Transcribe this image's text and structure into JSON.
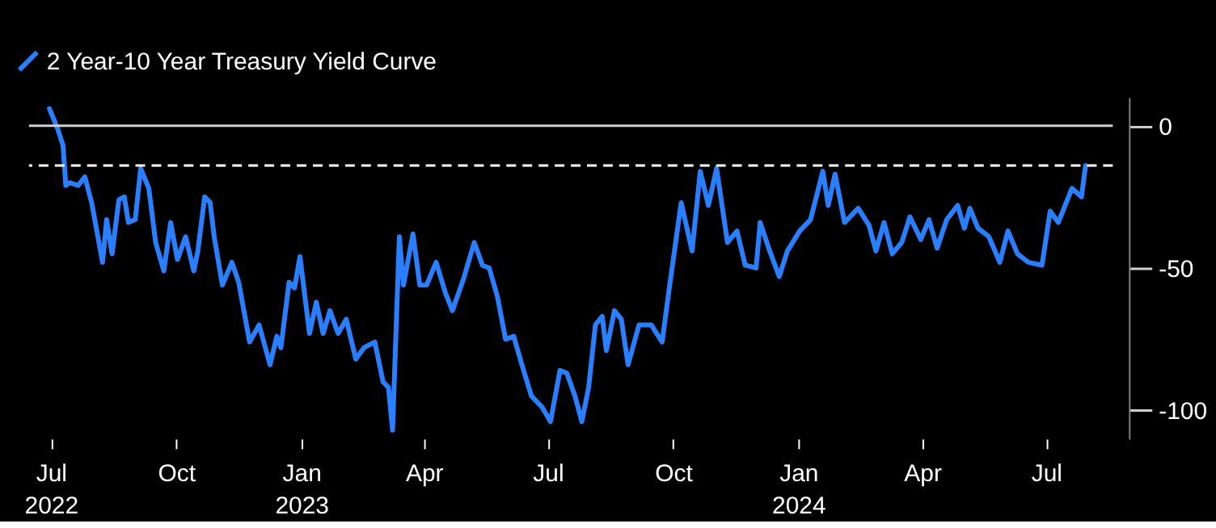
{
  "chart_data": {
    "type": "line",
    "x": [
      "2022-06-30",
      "2022-07-06",
      "2022-07-10",
      "2022-07-12",
      "2022-07-15",
      "2022-07-21",
      "2022-07-26",
      "2022-07-31",
      "2022-08-08",
      "2022-08-11",
      "2022-08-15",
      "2022-08-20",
      "2022-08-24",
      "2022-08-27",
      "2022-09-01",
      "2022-09-05",
      "2022-09-11",
      "2022-09-16",
      "2022-09-22",
      "2022-09-27",
      "2022-10-02",
      "2022-10-08",
      "2022-10-14",
      "2022-10-17",
      "2022-10-22",
      "2022-10-26",
      "2022-10-29",
      "2022-11-04",
      "2022-11-11",
      "2022-11-16",
      "2022-11-24",
      "2022-12-01",
      "2022-12-09",
      "2022-12-14",
      "2022-12-17",
      "2022-12-23",
      "2022-12-27",
      "2022-12-31",
      "2023-01-07",
      "2023-01-12",
      "2023-01-17",
      "2023-01-22",
      "2023-01-28",
      "2023-02-03",
      "2023-02-10",
      "2023-02-16",
      "2023-02-24",
      "2023-03-02",
      "2023-03-06",
      "2023-03-09",
      "2023-03-14",
      "2023-03-17",
      "2023-03-24",
      "2023-03-29",
      "2023-04-03",
      "2023-04-10",
      "2023-04-17",
      "2023-04-22",
      "2023-04-30",
      "2023-05-08",
      "2023-05-14",
      "2023-05-19",
      "2023-05-25",
      "2023-05-31",
      "2023-06-06",
      "2023-06-12",
      "2023-06-19",
      "2023-06-27",
      "2023-07-03",
      "2023-07-10",
      "2023-07-15",
      "2023-07-21",
      "2023-07-26",
      "2023-07-31",
      "2023-08-05",
      "2023-08-10",
      "2023-08-13",
      "2023-08-19",
      "2023-08-24",
      "2023-08-29",
      "2023-09-06",
      "2023-09-15",
      "2023-09-23",
      "2023-09-28",
      "2023-10-07",
      "2023-10-15",
      "2023-10-21",
      "2023-10-27",
      "2023-11-02",
      "2023-11-10",
      "2023-11-17",
      "2023-11-23",
      "2023-12-01",
      "2023-12-04",
      "2023-12-11",
      "2023-12-18",
      "2023-12-24",
      "2024-01-02",
      "2024-01-10",
      "2024-01-19",
      "2024-01-23",
      "2024-01-28",
      "2024-02-04",
      "2024-02-14",
      "2024-02-22",
      "2024-02-27",
      "2024-03-04",
      "2024-03-10",
      "2024-03-17",
      "2024-03-23",
      "2024-03-31",
      "2024-04-06",
      "2024-04-12",
      "2024-04-19",
      "2024-04-27",
      "2024-05-02",
      "2024-05-06",
      "2024-05-12",
      "2024-05-20",
      "2024-05-28",
      "2024-06-03",
      "2024-06-10",
      "2024-06-18",
      "2024-06-28",
      "2024-07-04",
      "2024-07-10",
      "2024-07-15",
      "2024-07-20",
      "2024-07-27",
      "2024-07-30"
    ],
    "series": [
      {
        "name": "2 Year-10 Year Treasury Yield Curve",
        "color": "#2a7fff",
        "values": [
          6,
          -1,
          -7,
          -21,
          -20,
          -21,
          -18,
          -27,
          -48,
          -33,
          -45,
          -26,
          -25,
          -34,
          -33,
          -15,
          -22,
          -41,
          -51,
          -34,
          -47,
          -39,
          -51,
          -44,
          -25,
          -27,
          -39,
          -56,
          -48,
          -55,
          -76,
          -70,
          -84,
          -74,
          -78,
          -55,
          -57,
          -46,
          -73,
          -62,
          -73,
          -65,
          -73,
          -68,
          -82,
          -78,
          -76,
          -90,
          -92,
          -107,
          -39,
          -56,
          -38,
          -56,
          -56,
          -48,
          -59,
          -65,
          -54,
          -41,
          -49,
          -50,
          -60,
          -75,
          -74,
          -84,
          -95,
          -99,
          -104,
          -86,
          -87,
          -95,
          -104,
          -92,
          -70,
          -67,
          -79,
          -65,
          -68,
          -84,
          -70,
          -70,
          -76,
          -58,
          -27,
          -44,
          -16,
          -28,
          -15,
          -41,
          -37,
          -49,
          -50,
          -34,
          -44,
          -53,
          -44,
          -37,
          -33,
          -16,
          -28,
          -17,
          -34,
          -29,
          -35,
          -44,
          -34,
          -45,
          -41,
          -32,
          -40,
          -33,
          -43,
          -33,
          -28,
          -36,
          -29,
          -36,
          -39,
          -48,
          -37,
          -45,
          -48,
          -49,
          -30,
          -34,
          -28,
          -22,
          -25,
          -14
        ]
      }
    ],
    "xlim": [
      "2022-06-15",
      "2024-08-19"
    ],
    "xticks": [
      {
        "value": "2022-07-01",
        "label": "Jul\n2022"
      },
      {
        "value": "2022-10-01",
        "label": "Oct"
      },
      {
        "value": "2023-01-01",
        "label": "Jan\n2023"
      },
      {
        "value": "2023-04-01",
        "label": "Apr"
      },
      {
        "value": "2023-07-01",
        "label": "Jul"
      },
      {
        "value": "2023-10-01",
        "label": "Oct"
      },
      {
        "value": "2024-01-01",
        "label": "Jan\n2024"
      },
      {
        "value": "2024-04-01",
        "label": "Apr"
      },
      {
        "value": "2024-07-01",
        "label": "Jul"
      }
    ],
    "ylim": [
      -110,
      10
    ],
    "yticks": [
      0,
      -50,
      -100
    ],
    "ref_lines": [
      {
        "axis": "y",
        "value": 0,
        "color": "#d0d0d0",
        "line_style": "solid"
      },
      {
        "axis": "y",
        "value": -14,
        "color": "#ffffff",
        "line_style": "dashed"
      }
    ],
    "legend": "top left",
    "grid": false,
    "line_style": "solid"
  }
}
